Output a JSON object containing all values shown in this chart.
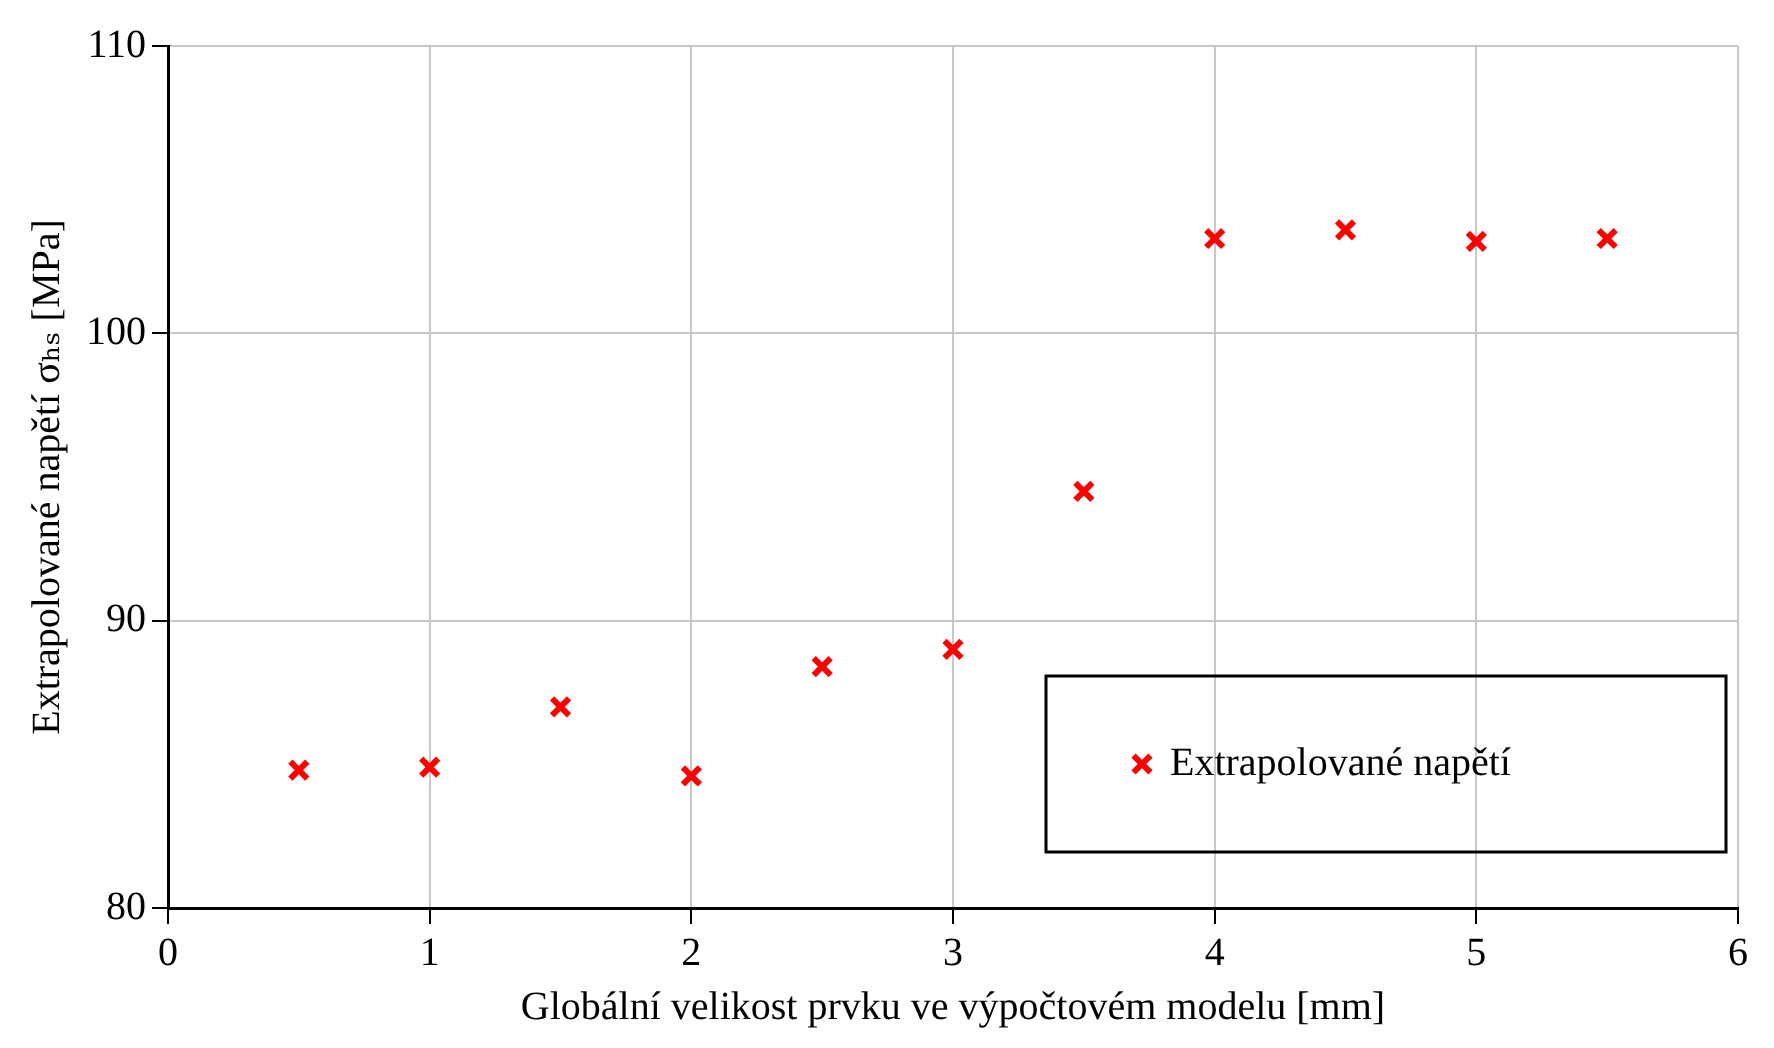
{
  "chart_data": {
    "type": "scatter",
    "xlabel": "Globální velikost prvku ve výpočtovém modelu [mm]",
    "ylabel": "Extrapolované napětí σₕₛ [MPa]",
    "x": [
      0.5,
      1,
      1.5,
      2,
      2.5,
      3,
      3.5,
      4,
      4.5,
      5,
      5.5
    ],
    "series": [
      {
        "name": "Extrapolované napětí",
        "color": "#ff0000",
        "values": [
          84.8,
          84.9,
          87.0,
          84.6,
          88.4,
          89.0,
          94.5,
          103.3,
          103.6,
          103.2,
          103.3
        ]
      }
    ],
    "xlim": [
      0,
      6
    ],
    "xticks": [
      0,
      1,
      2,
      3,
      4,
      5,
      6
    ],
    "ylim": [
      80,
      110
    ],
    "yticks": [
      80,
      90,
      100,
      110
    ],
    "grid": true,
    "legend": "bottom right",
    "marker": "cross"
  }
}
